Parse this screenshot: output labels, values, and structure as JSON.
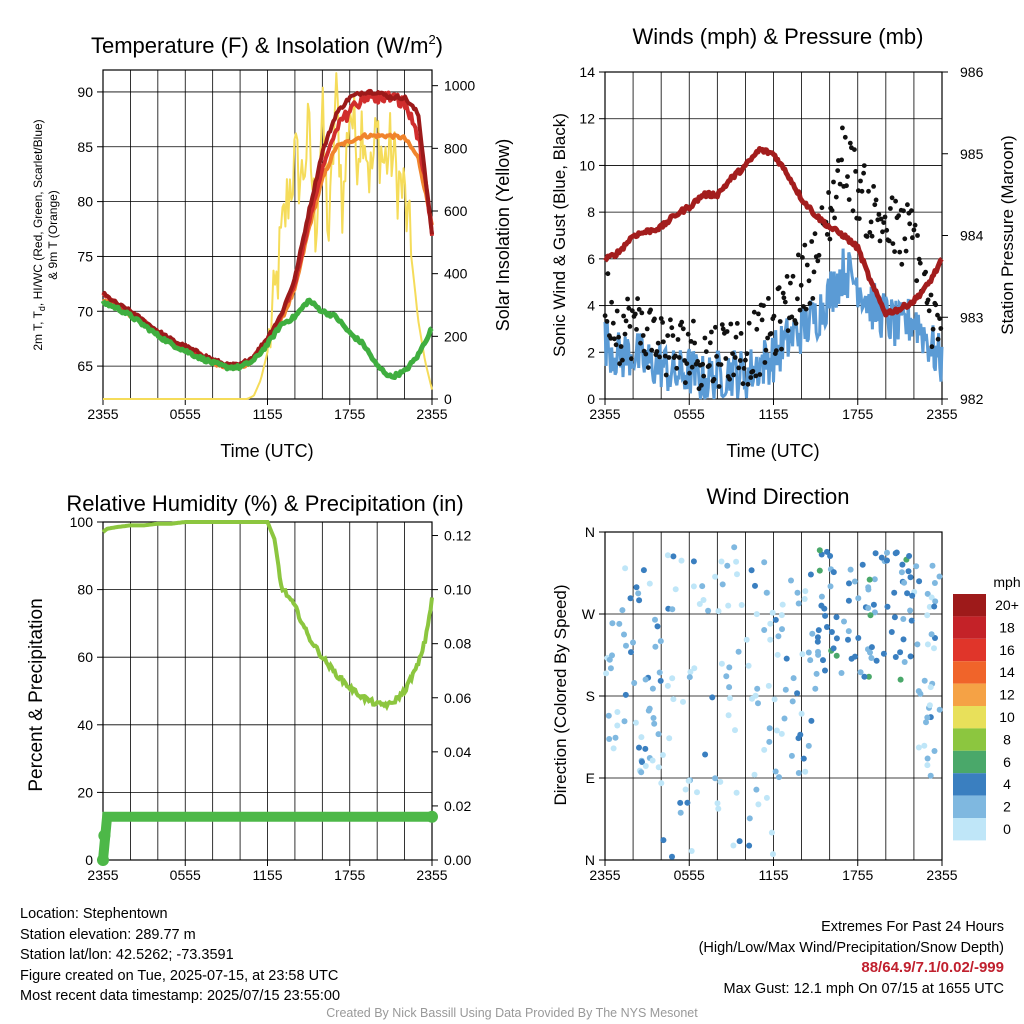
{
  "chart_data": [
    {
      "type": "line",
      "title": "Temperature (F) & Insolation (W/m",
      "title_sup": "2",
      "title_end": ")",
      "xlabel": "Time (UTC)",
      "ylabel_left": "2m T, Tₐ, HI/WC (Red, Green, Scarlet/Blue) & 9m T (Orange)",
      "ylabel_left_line1": "2m T, T",
      "ylabel_left_sub": "d",
      "ylabel_left_line1_end": ", HI/WC (Red, Green, Scarlet/Blue)",
      "ylabel_left_line2": "& 9m T (Orange)",
      "ylabel_right": "Solar Insolation (Yellow)",
      "x_ticks": [
        "2355",
        "0555",
        "1155",
        "1755",
        "2355"
      ],
      "ylim_left": [
        62,
        92
      ],
      "y_ticks_left": [
        65,
        70,
        75,
        80,
        85,
        90
      ],
      "ylim_right": [
        0,
        1050
      ],
      "y_ticks_right": [
        0,
        200,
        400,
        600,
        800,
        1000
      ],
      "series": [
        {
          "color": "#d02d2d",
          "x": [
            0,
            1,
            2,
            3,
            4,
            5,
            6,
            7,
            8,
            9,
            10,
            11,
            12,
            13,
            14,
            15,
            16,
            17,
            18,
            19,
            20,
            21,
            22,
            23,
            24
          ],
          "values": [
            71.5,
            70.6,
            69.9,
            69.0,
            68.1,
            67.3,
            66.7,
            66.1,
            65.5,
            65.0,
            65.0,
            65.8,
            67.5,
            69.5,
            72.5,
            78.0,
            83.0,
            86.5,
            88.5,
            89.5,
            89.5,
            89.5,
            89.0,
            86.0,
            77.0
          ]
        },
        {
          "color": "#f0842c",
          "x": [
            0,
            1,
            2,
            3,
            4,
            5,
            6,
            7,
            8,
            9,
            10,
            11,
            12,
            13,
            14,
            15,
            16,
            17,
            18,
            19,
            20,
            21,
            22,
            23,
            24
          ],
          "values": [
            71.0,
            70.4,
            69.7,
            68.8,
            67.9,
            67.1,
            66.5,
            65.9,
            65.3,
            64.9,
            64.8,
            65.6,
            67.2,
            69.2,
            72.0,
            77.5,
            82.0,
            85.0,
            85.5,
            86.0,
            86.0,
            86.0,
            85.8,
            84.0,
            78.0
          ]
        },
        {
          "color": "#9c1a1a",
          "x": [
            0,
            1,
            2,
            3,
            4,
            5,
            6,
            7,
            8,
            9,
            10,
            11,
            12,
            13,
            14,
            15,
            16,
            17,
            18,
            19,
            20,
            21,
            22,
            23,
            24
          ],
          "values": [
            71.6,
            70.7,
            70.0,
            69.1,
            68.2,
            67.4,
            66.8,
            66.2,
            65.6,
            65.1,
            65.1,
            65.9,
            67.6,
            69.7,
            73.0,
            79.0,
            84.5,
            88.0,
            89.5,
            90.0,
            90.0,
            89.5,
            89.5,
            88.0,
            77.0
          ]
        },
        {
          "color": "#3fae3f",
          "x": [
            0,
            1,
            2,
            3,
            4,
            5,
            6,
            7,
            8,
            9,
            10,
            11,
            12,
            13,
            14,
            15,
            16,
            17,
            18,
            19,
            20,
            21,
            22,
            23,
            24
          ],
          "values": [
            70.8,
            70.3,
            69.6,
            68.7,
            67.8,
            67.0,
            66.4,
            65.8,
            65.3,
            64.9,
            64.9,
            65.5,
            67.0,
            68.8,
            69.5,
            71.0,
            70.0,
            69.5,
            68.0,
            67.0,
            65.0,
            64.0,
            64.5,
            66.0,
            68.5
          ]
        },
        {
          "color": "#f5dc5a",
          "axis": "right",
          "x": [
            0,
            1,
            2,
            3,
            4,
            5,
            6,
            7,
            8,
            9,
            10,
            10.5,
            11,
            11.5,
            12,
            12.5,
            13,
            13.5,
            14,
            14.5,
            15,
            15.5,
            16,
            16.5,
            17,
            17.5,
            18,
            18.5,
            19,
            19.5,
            20,
            20.5,
            21,
            21.5,
            22,
            22.5,
            23,
            23.5,
            24
          ],
          "values": [
            0,
            0,
            0,
            0,
            0,
            0,
            0,
            0,
            0,
            0,
            0,
            0,
            10,
            60,
            150,
            300,
            500,
            650,
            760,
            700,
            850,
            550,
            900,
            500,
            1000,
            600,
            950,
            800,
            900,
            700,
            850,
            750,
            800,
            700,
            650,
            450,
            250,
            120,
            30
          ]
        }
      ]
    },
    {
      "type": "line",
      "title": "Winds (mph) & Pressure (mb)",
      "xlabel": "Time (UTC)",
      "ylabel_left": "Sonic Wind & Gust (Blue, Black)",
      "ylabel_right": "Station Pressure (Maroon)",
      "x_ticks": [
        "2355",
        "0555",
        "1155",
        "1755",
        "2355"
      ],
      "ylim_left": [
        0,
        14
      ],
      "y_ticks_left": [
        0,
        2,
        4,
        6,
        8,
        10,
        12,
        14
      ],
      "ylim_right": [
        982,
        986
      ],
      "y_ticks_right": [
        982,
        983,
        984,
        985,
        986
      ],
      "series": [
        {
          "color": "#5b9bd5",
          "x": [
            0,
            1,
            2,
            3,
            4,
            5,
            6,
            7,
            8,
            9,
            10,
            11,
            12,
            13,
            14,
            15,
            16,
            17,
            18,
            19,
            20,
            21,
            22,
            23,
            24
          ],
          "values": [
            2.5,
            1.8,
            2.0,
            1.5,
            1.5,
            1.0,
            1.2,
            0.8,
            1.0,
            1.2,
            1.0,
            1.5,
            1.8,
            2.5,
            3.0,
            3.5,
            4.5,
            5.5,
            5.0,
            4.0,
            3.5,
            3.0,
            3.5,
            2.5,
            1.5
          ]
        },
        {
          "color": "#111111",
          "x": [
            0,
            1,
            2,
            3,
            4,
            5,
            6,
            7,
            8,
            9,
            10,
            11,
            12,
            13,
            14,
            15,
            16,
            17,
            18,
            19,
            20,
            21,
            22,
            23,
            24
          ],
          "values": [
            4.5,
            3.0,
            3.2,
            2.8,
            2.5,
            2.0,
            2.2,
            1.8,
            2.0,
            2.2,
            2.0,
            2.5,
            3.0,
            4.0,
            5.0,
            6.0,
            8.0,
            10.5,
            9.0,
            8.0,
            7.5,
            7.0,
            7.0,
            4.0,
            2.0
          ]
        },
        {
          "color": "#a31d1d",
          "axis": "right",
          "x": [
            0,
            1,
            2,
            3,
            4,
            5,
            6,
            7,
            8,
            9,
            10,
            11,
            12,
            13,
            14,
            15,
            16,
            17,
            18,
            19,
            20,
            21,
            22,
            23,
            24
          ],
          "values": [
            983.7,
            983.8,
            984.0,
            984.05,
            984.1,
            984.25,
            984.35,
            984.5,
            984.5,
            984.7,
            984.85,
            985.05,
            985.0,
            984.75,
            984.45,
            984.25,
            984.1,
            984.0,
            983.85,
            983.4,
            983.05,
            983.1,
            983.2,
            983.4,
            983.7
          ]
        }
      ]
    },
    {
      "type": "line",
      "title": "Relative Humidity (%) & Precipitation (in)",
      "ylabel_left": "Percent & Precipitation",
      "x_ticks": [
        "2355",
        "0555",
        "1155",
        "1755",
        "2355"
      ],
      "ylim_left": [
        0,
        100
      ],
      "y_ticks_left": [
        0,
        20,
        40,
        60,
        80,
        100
      ],
      "ylim_right": [
        0,
        0.125
      ],
      "y_ticks_right": [
        "0.00",
        "0.02",
        "0.04",
        "0.06",
        "0.08",
        "0.10",
        "0.12"
      ],
      "series": [
        {
          "color": "#8cc63f",
          "x": [
            0,
            0.3,
            1,
            2,
            3,
            4,
            5,
            6,
            7,
            8,
            9,
            10,
            11,
            11.5,
            12,
            12.5,
            13,
            14,
            15,
            16,
            17,
            18,
            19,
            20,
            21,
            22,
            23,
            23.5,
            24
          ],
          "values": [
            97,
            98,
            98.5,
            99,
            99,
            99.5,
            99.5,
            100,
            100,
            100,
            100,
            100,
            100,
            100,
            100,
            95,
            81,
            75,
            66,
            60,
            55,
            51,
            48,
            46,
            46,
            50,
            58,
            65,
            77
          ]
        },
        {
          "color": "#4db848",
          "axis": "right",
          "x": [
            0,
            0.3,
            24
          ],
          "values": [
            0,
            0.016,
            0.016
          ]
        }
      ]
    },
    {
      "type": "scatter",
      "title": "Wind Direction",
      "ylabel": "Direction (Colored By Speed)",
      "x_ticks": [
        "2355",
        "0555",
        "1155",
        "1755",
        "2355"
      ],
      "y_ticks": [
        "N",
        "E",
        "S",
        "W",
        "N"
      ],
      "legend_title": "mph",
      "legend_labels": [
        "20+",
        "18",
        "16",
        "14",
        "12",
        "10",
        "8",
        "6",
        "4",
        "2",
        "0"
      ],
      "legend_colors": [
        "#9e1a1a",
        "#c42228",
        "#e0352a",
        "#f0642a",
        "#f5a245",
        "#e8e05a",
        "#8cc63f",
        "#4aa86a",
        "#3a7fc0",
        "#7fb8e0",
        "#bfe6f8"
      ]
    }
  ],
  "footer": {
    "location": "Location: Stephentown",
    "elevation": "Station elevation: 289.77 m",
    "latlon": "Station lat/lon: 42.5262; -73.3591",
    "created": "Figure created on Tue, 2025-07-15, at 23:58 UTC",
    "recent": "Most recent data timestamp: 2025/07/15 23:55:00",
    "extremes_title": "Extremes For Past 24 Hours",
    "extremes_sub": "(High/Low/Max Wind/Precipitation/Snow Depth)",
    "extremes_values": "88/64.9/7.1/0.02/-999",
    "max_gust": "Max Gust: 12.1 mph On 07/15 at 1655 UTC",
    "credit": "Created By Nick Bassill Using Data Provided By The NYS Mesonet"
  }
}
